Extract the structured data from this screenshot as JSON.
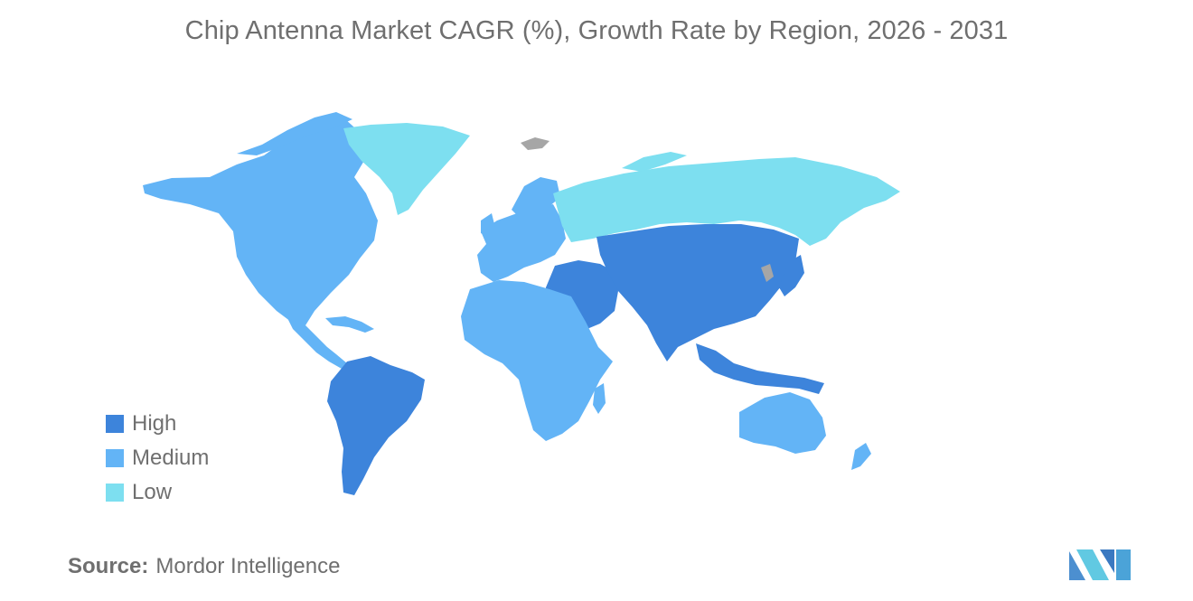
{
  "title": "Chip Antenna Market CAGR (%), Growth Rate by Region, 2026 - 2031",
  "legend": {
    "items": [
      {
        "label": "High",
        "color": "#3d84db"
      },
      {
        "label": "Medium",
        "color": "#63b4f6"
      },
      {
        "label": "Low",
        "color": "#7ddff0"
      }
    ]
  },
  "no_data_color": "#a6a6a6",
  "source": {
    "label": "Source:",
    "value": "Mordor Intelligence"
  },
  "logo_icon": "mordor-intelligence-logo-icon",
  "regions": {
    "north_america": "Medium",
    "greenland": "Low",
    "central_america_caribbean": "Medium",
    "south_america": "High",
    "europe": "Medium",
    "russia": "Low",
    "middle_east": "High",
    "africa": "Medium",
    "asia": "High",
    "southeast_asia": "High",
    "australia_new_zealand": "Medium"
  }
}
